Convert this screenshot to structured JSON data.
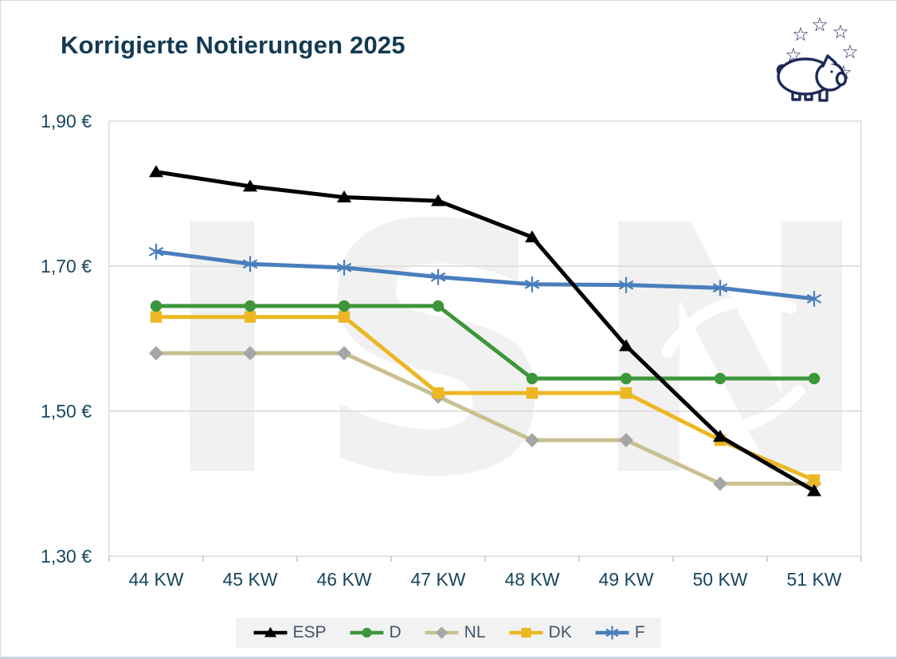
{
  "page": {
    "title": "Korrigierte Notierungen 2025"
  },
  "logo": {
    "icon": "pig-with-eu-stars-logo"
  },
  "watermark": {
    "text": "ISN"
  },
  "chart_data": {
    "type": "line",
    "title": "Korrigierte Notierungen 2025",
    "xlabel": "",
    "ylabel": "",
    "x_categories": [
      "44 KW",
      "45 KW",
      "46 KW",
      "47 KW",
      "48 KW",
      "49 KW",
      "50 KW",
      "51 KW"
    ],
    "y_ticks": [
      {
        "label": "1,90 €",
        "value": 1.9
      },
      {
        "label": "1,70 €",
        "value": 1.7
      },
      {
        "label": "1,50 €",
        "value": 1.5
      },
      {
        "label": "1,30 €",
        "value": 1.3
      }
    ],
    "ylim": [
      1.3,
      1.9
    ],
    "grid": "horizontal",
    "legend_position": "bottom",
    "colors": {
      "grid": "#d9d9d9",
      "axis_tick": "#bfbfbf",
      "tick_text": "#17465f"
    },
    "series": [
      {
        "name": "ESP",
        "color": "#000000",
        "marker": "triangle",
        "values": [
          1.83,
          1.81,
          1.795,
          1.79,
          1.74,
          1.59,
          1.465,
          1.39
        ]
      },
      {
        "name": "D",
        "color": "#3d963b",
        "marker": "circle",
        "values": [
          1.645,
          1.645,
          1.645,
          1.645,
          1.545,
          1.545,
          1.545,
          1.545
        ]
      },
      {
        "name": "NL",
        "color": "#c9c092",
        "marker_color": "#a6a6a6",
        "marker": "diamond",
        "values": [
          1.58,
          1.58,
          1.58,
          1.52,
          1.46,
          1.46,
          1.4,
          1.4
        ]
      },
      {
        "name": "DK",
        "color": "#ecb722",
        "marker": "square",
        "values": [
          1.63,
          1.63,
          1.63,
          1.525,
          1.525,
          1.525,
          1.46,
          1.405
        ]
      },
      {
        "name": "F",
        "color": "#4a7ebc",
        "marker": "asterisk",
        "values": [
          1.72,
          1.703,
          1.698,
          1.685,
          1.675,
          1.674,
          1.67,
          1.655
        ]
      }
    ]
  }
}
